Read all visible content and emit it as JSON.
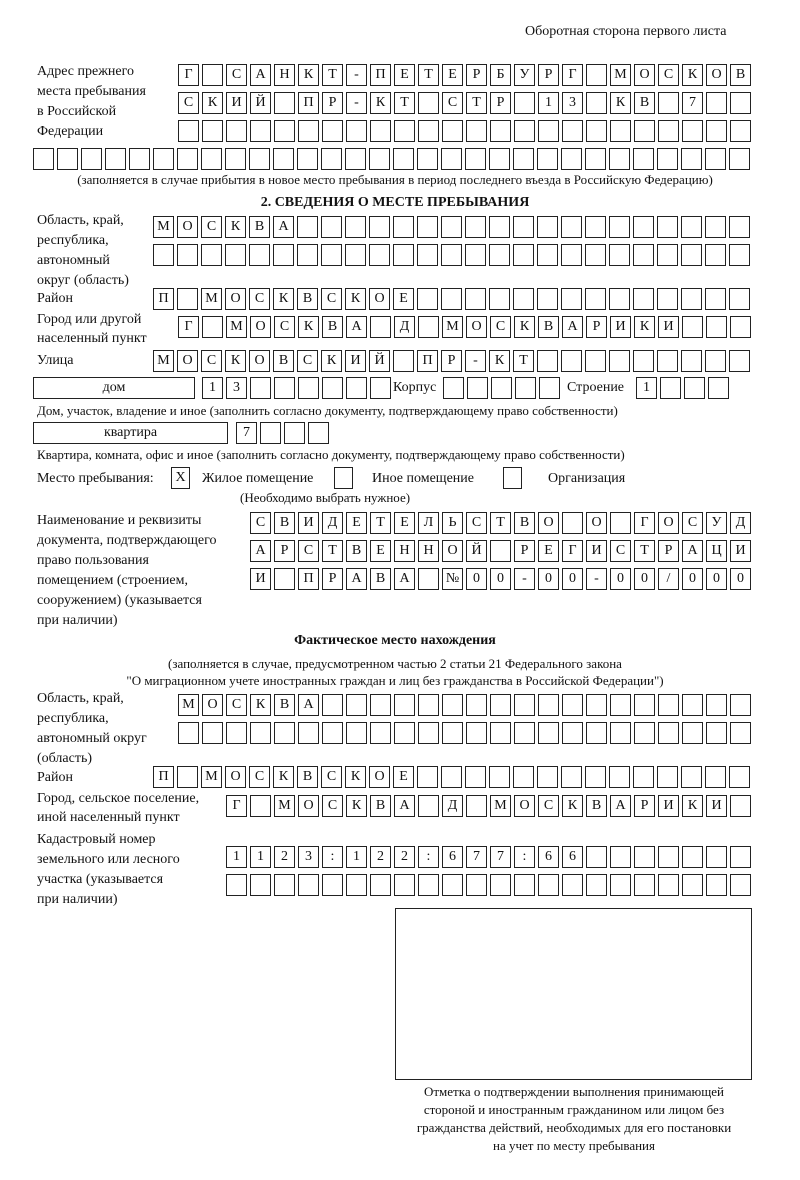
{
  "header": "Оборотная сторона первого листа",
  "prev_address": {
    "label": [
      "Адрес прежнего",
      "места пребывания",
      "в Российской",
      "Федерации"
    ],
    "rows": [
      [
        "Г",
        "",
        "С",
        "А",
        "Н",
        "К",
        "Т",
        "-",
        "П",
        "Е",
        "Т",
        "Е",
        "Р",
        "Б",
        "У",
        "Р",
        "Г",
        "",
        "М",
        "О",
        "С",
        "К",
        "О",
        "В"
      ],
      [
        "С",
        "К",
        "И",
        "Й",
        "",
        "П",
        "Р",
        "-",
        "К",
        "Т",
        "",
        "С",
        "Т",
        "Р",
        "",
        "1",
        "3",
        "",
        "К",
        "В",
        "",
        "7",
        "",
        ""
      ],
      [
        "",
        "",
        "",
        "",
        "",
        "",
        "",
        "",
        "",
        "",
        "",
        "",
        "",
        "",
        "",
        "",
        "",
        "",
        "",
        "",
        "",
        "",
        "",
        ""
      ],
      [
        "",
        "",
        "",
        "",
        "",
        "",
        "",
        "",
        "",
        "",
        "",
        "",
        "",
        "",
        "",
        "",
        "",
        "",
        "",
        "",
        "",
        "",
        "",
        "",
        "",
        "",
        "",
        "",
        "",
        ""
      ]
    ],
    "note": "(заполняется в случае прибытия в новое место пребывания в период последнего въезда в Российскую Федерацию)"
  },
  "section2": {
    "title": "2. СВЕДЕНИЯ О МЕСТЕ ПРЕБЫВАНИЯ",
    "region_label": [
      "Область, край,",
      "республика,",
      "автономный",
      "округ (область)"
    ],
    "region_rows": [
      [
        "М",
        "О",
        "С",
        "К",
        "В",
        "А",
        "",
        "",
        "",
        "",
        "",
        "",
        "",
        "",
        "",
        "",
        "",
        "",
        "",
        "",
        "",
        "",
        "",
        "",
        ""
      ],
      [
        "",
        "",
        "",
        "",
        "",
        "",
        "",
        "",
        "",
        "",
        "",
        "",
        "",
        "",
        "",
        "",
        "",
        "",
        "",
        "",
        "",
        "",
        "",
        "",
        ""
      ]
    ],
    "district_label": "Район",
    "district_row": [
      "П",
      "",
      "М",
      "О",
      "С",
      "К",
      "В",
      "С",
      "К",
      "О",
      "Е",
      "",
      "",
      "",
      "",
      "",
      "",
      "",
      "",
      "",
      "",
      "",
      "",
      "",
      ""
    ],
    "city_label": [
      "Город или другой",
      "населенный пункт"
    ],
    "city_row": [
      "Г",
      "",
      "М",
      "О",
      "С",
      "К",
      "В",
      "А",
      "",
      "Д",
      "",
      "М",
      "О",
      "С",
      "К",
      "В",
      "А",
      "Р",
      "И",
      "К",
      "И",
      "",
      "",
      ""
    ],
    "street_label": "Улица",
    "street_row": [
      "М",
      "О",
      "С",
      "К",
      "О",
      "В",
      "С",
      "К",
      "И",
      "Й",
      "",
      "П",
      "Р",
      "-",
      "К",
      "Т",
      "",
      "",
      "",
      "",
      "",
      "",
      "",
      "",
      ""
    ],
    "house_type": "дом",
    "house_cells": [
      "1",
      "3",
      "",
      "",
      "",
      "",
      "",
      ""
    ],
    "korpus_label": "Корпус",
    "korpus_cells": [
      "",
      "",
      "",
      "",
      ""
    ],
    "building_label": "Строение",
    "building_cells": [
      "1",
      "",
      "",
      ""
    ],
    "house_note": "Дом, участок, владение и иное (заполнить согласно документу, подтверждающему право собственности)",
    "apt_type": "квартира",
    "apt_cells": [
      "7",
      "",
      "",
      ""
    ],
    "apt_note": "Квартира, комната, офис и иное (заполнить согласно документу, подтверждающему право собственности)",
    "stay_label": "Место пребывания:",
    "stay_options": [
      {
        "label": "Жилое помещение",
        "mark": "X"
      },
      {
        "label": "Иное помещение",
        "mark": ""
      },
      {
        "label": "Организация",
        "mark": ""
      }
    ],
    "stay_hint": "(Необходимо выбрать нужное)",
    "doc_label": [
      "Наименование и реквизиты",
      "документа, подтверждающего",
      "право пользования",
      "помещением (строением,",
      "сооружением) (указывается",
      "при наличии)"
    ],
    "doc_rows": [
      [
        "С",
        "В",
        "И",
        "Д",
        "Е",
        "Т",
        "Е",
        "Л",
        "Ь",
        "С",
        "Т",
        "В",
        "О",
        "",
        "О",
        "",
        "Г",
        "О",
        "С",
        "У",
        "Д"
      ],
      [
        "А",
        "Р",
        "С",
        "Т",
        "В",
        "Е",
        "Н",
        "Н",
        "О",
        "Й",
        "",
        "Р",
        "Е",
        "Г",
        "И",
        "С",
        "Т",
        "Р",
        "А",
        "Ц",
        "И"
      ],
      [
        "И",
        "",
        "П",
        "Р",
        "А",
        "В",
        "А",
        "",
        "№",
        "0",
        "0",
        "-",
        "0",
        "0",
        "-",
        "0",
        "0",
        "/",
        "0",
        "0",
        "0"
      ]
    ]
  },
  "actual": {
    "title": "Фактическое место нахождения",
    "subtitle": [
      "(заполняется в случае, предусмотренном частью 2 статьи 21 Федерального закона",
      "\"О миграционном учете иностранных граждан и лиц без гражданства в Российской Федерации\")"
    ],
    "region_label": [
      "Область, край,",
      "республика,",
      "автономный округ",
      "(область)"
    ],
    "region_rows": [
      [
        "М",
        "О",
        "С",
        "К",
        "В",
        "А",
        "",
        "",
        "",
        "",
        "",
        "",
        "",
        "",
        "",
        "",
        "",
        "",
        "",
        "",
        "",
        "",
        "",
        ""
      ],
      [
        "",
        "",
        "",
        "",
        "",
        "",
        "",
        "",
        "",
        "",
        "",
        "",
        "",
        "",
        "",
        "",
        "",
        "",
        "",
        "",
        "",
        "",
        "",
        ""
      ]
    ],
    "district_label": "Район",
    "district_row": [
      "П",
      "",
      "М",
      "О",
      "С",
      "К",
      "В",
      "С",
      "К",
      "О",
      "Е",
      "",
      "",
      "",
      "",
      "",
      "",
      "",
      "",
      "",
      "",
      "",
      "",
      "",
      ""
    ],
    "city_label": [
      "Город, сельское поселение,",
      "иной населенный пункт"
    ],
    "city_row": [
      "Г",
      "",
      "М",
      "О",
      "С",
      "К",
      "В",
      "А",
      "",
      "Д",
      "",
      "М",
      "О",
      "С",
      "К",
      "В",
      "А",
      "Р",
      "И",
      "К",
      "И",
      ""
    ],
    "cadastre_label": [
      "Кадастровый номер",
      "земельного или лесного",
      "участка (указывается",
      "при наличии)"
    ],
    "cadastre_rows": [
      [
        "1",
        "1",
        "2",
        "3",
        ":",
        "1",
        "2",
        "2",
        ":",
        "6",
        "7",
        "7",
        ":",
        "6",
        "6",
        "",
        "",
        "",
        "",
        "",
        "",
        ""
      ],
      [
        "",
        "",
        "",
        "",
        "",
        "",
        "",
        "",
        "",
        "",
        "",
        "",
        "",
        "",
        "",
        "",
        "",
        "",
        "",
        "",
        "",
        ""
      ]
    ],
    "stamp_caption": [
      "Отметка о подтверждении выполнения принимающей",
      "стороной и иностранным гражданином или лицом без",
      "гражданства действий, необходимых для его постановки",
      "на учет по месту пребывания"
    ]
  }
}
